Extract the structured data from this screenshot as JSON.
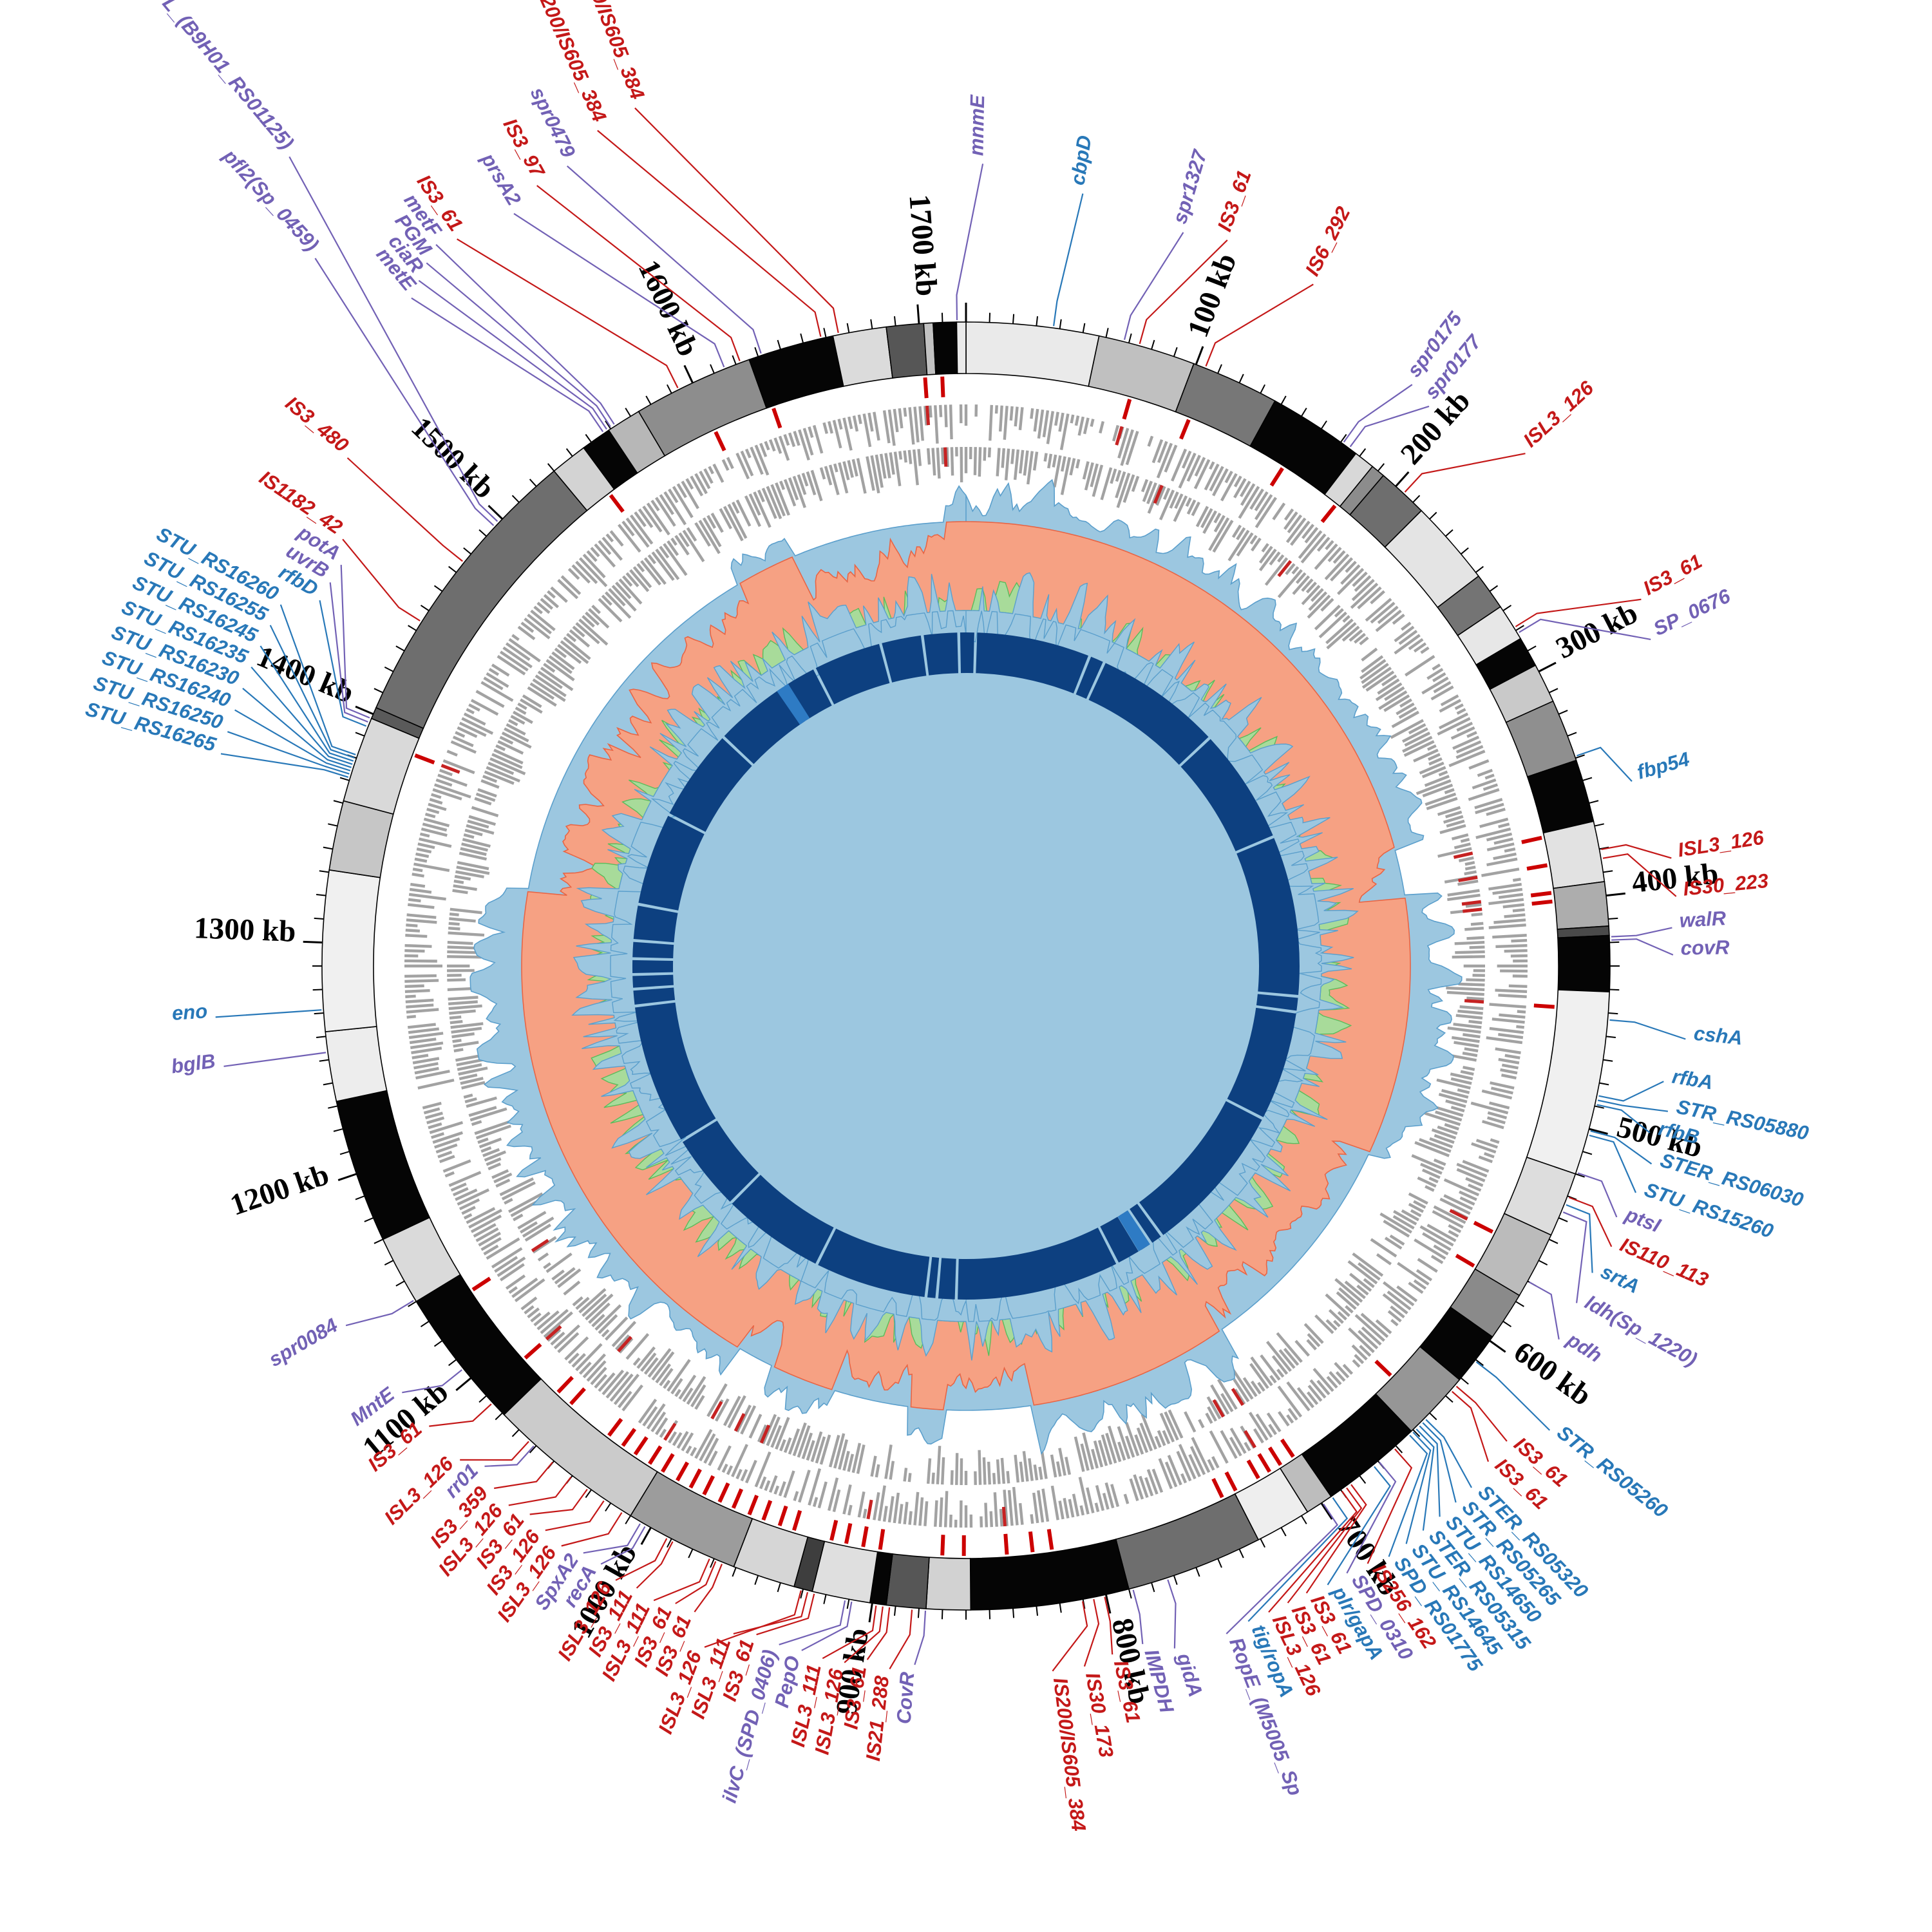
{
  "chart_data": {
    "type": "circos",
    "description": "Circular bacterial genome comparison plot with grayscale alignment ring, kb scale, IS-element marks, gene bar tracks, GC-skew and coverage histograms, core-genome inner ring, and radiating gene labels",
    "genome_length_kb": 1720,
    "unit": "kb",
    "ticks": {
      "minor_kb": 10,
      "major_kb": 100
    },
    "scale_labels": [
      "100 kb",
      "200 kb",
      "300 kb",
      "400 kb",
      "500 kb",
      "600 kb",
      "700 kb",
      "800 kb",
      "900 kb",
      "1000 kb",
      "1100 kb",
      "1200 kb",
      "1300 kb",
      "1400 kb",
      "1500 kb",
      "1600 kb",
      "1700 kb"
    ],
    "palette": {
      "label_red": "#C41818",
      "label_blue": "#2878B8",
      "label_purple": "#7261B5",
      "scale_black": "#000000",
      "skew_pos_fill": "#9CC7E0",
      "skew_pos_stroke": "#5B9FCC",
      "skew_neg_fill": "#F6A183",
      "skew_neg_stroke": "#E86545",
      "cov_green_fill": "#A8DB9A",
      "cov_green_stroke": "#5BBB5B",
      "cov_blue_fill": "#9CC7E0",
      "cov_blue_stroke": "#5B9FCC",
      "core_ring": "#0D4080",
      "core_ring_highlight": "#2E7BC4",
      "gene_bar": "#A2A2A2",
      "gene_bar_red": "#C62222",
      "is_mark_red": "#CC0000",
      "ring_outline": "#000000"
    },
    "layout": {
      "center": 1500,
      "karyotype_r": [
        920,
        1000
      ],
      "tick_r": 1000,
      "kb_label_r": 1042,
      "is_mark_r": [
        884,
        916
      ],
      "gene_row1_base_r": 872,
      "gene_row2_base_r": 806,
      "skew_base_r": 690,
      "skew_amp_out": 80,
      "skew_amp_in": 95,
      "cov_base_r": 552,
      "core_r": [
        455,
        518
      ],
      "leader_r1": 1003,
      "leader_r2": 1042
    },
    "karyotype_segments": [
      [
        0,
        57,
        "#EAEAEA"
      ],
      [
        57,
        99,
        "#C0C0C0"
      ],
      [
        99,
        137,
        "#777777"
      ],
      [
        137,
        178,
        "#050505"
      ],
      [
        178,
        187,
        "#D8D8D8"
      ],
      [
        187,
        193,
        "#8C8C8C"
      ],
      [
        193,
        215,
        "#6E6E6E"
      ],
      [
        215,
        252,
        "#E4E4E4"
      ],
      [
        252,
        268,
        "#747474"
      ],
      [
        268,
        284,
        "#E7E7E7"
      ],
      [
        284,
        297,
        "#050505"
      ],
      [
        297,
        314,
        "#C9C9C9"
      ],
      [
        314,
        341,
        "#8F8F8F"
      ],
      [
        341,
        368,
        "#050505"
      ],
      [
        368,
        394,
        "#E2E2E2"
      ],
      [
        394,
        413,
        "#ADADAD"
      ],
      [
        413,
        417,
        "#4A4A4A"
      ],
      [
        417,
        441,
        "#050505"
      ],
      [
        441,
        520,
        "#F0F0F0"
      ],
      [
        520,
        548,
        "#DDDDDD"
      ],
      [
        548,
        577,
        "#BBBBBB"
      ],
      [
        577,
        598,
        "#8A8A8A"
      ],
      [
        598,
        621,
        "#050505"
      ],
      [
        621,
        651,
        "#969696"
      ],
      [
        651,
        695,
        "#050505"
      ],
      [
        695,
        707,
        "#BDBDBD"
      ],
      [
        707,
        731,
        "#EEEEEE"
      ],
      [
        731,
        790,
        "#6E6E6E"
      ],
      [
        790,
        858,
        "#050505"
      ],
      [
        858,
        877,
        "#D2D2D2"
      ],
      [
        877,
        894,
        "#565656"
      ],
      [
        894,
        901,
        "#050505"
      ],
      [
        901,
        926,
        "#DFDFDF"
      ],
      [
        926,
        934,
        "#3E3E3E"
      ],
      [
        934,
        961,
        "#D6D6D6"
      ],
      [
        961,
        1010,
        "#9C9C9C"
      ],
      [
        1010,
        1079,
        "#CBCBCB"
      ],
      [
        1079,
        1140,
        "#050505"
      ],
      [
        1140,
        1170,
        "#DADADA"
      ],
      [
        1170,
        1232,
        "#050505"
      ],
      [
        1232,
        1262,
        "#EDEDED"
      ],
      [
        1262,
        1331,
        "#F0F0F0"
      ],
      [
        1331,
        1361,
        "#C6C6C6"
      ],
      [
        1361,
        1398,
        "#D9D9D9"
      ],
      [
        1398,
        1403,
        "#5A5A5A"
      ],
      [
        1403,
        1530,
        "#6E6E6E"
      ],
      [
        1530,
        1546,
        "#D3D3D3"
      ],
      [
        1546,
        1559,
        "#050505"
      ],
      [
        1559,
        1574,
        "#B7B7B7"
      ],
      [
        1574,
        1626,
        "#8D8D8D"
      ],
      [
        1626,
        1663,
        "#050505"
      ],
      [
        1663,
        1686,
        "#DBDBDB"
      ],
      [
        1686,
        1702,
        "#565656"
      ],
      [
        1702,
        1706,
        "#C2C2C2"
      ],
      [
        1706,
        1716,
        "#050505"
      ],
      [
        1716,
        1720,
        "#EAEAEA"
      ]
    ],
    "is_element_marks_kb": [
      77,
      106,
      155,
      185,
      370,
      383,
      396,
      400,
      449,
      558,
      576,
      640,
      699,
      706,
      712,
      718,
      730,
      737,
      820,
      829,
      841,
      861,
      871,
      900,
      908,
      916,
      923,
      941,
      948,
      956,
      963,
      971,
      978,
      986,
      993,
      1000,
      1008,
      1015,
      1023,
      1030,
      1038,
      1061,
      1069,
      1091,
      1131,
      1390,
      1543,
      1600,
      1629,
      1701,
      1709
    ],
    "gene_rows": {
      "bin_kb": 2.5,
      "seed_row1": 101,
      "seed_row2": 202,
      "fill_prob": 0.85
    },
    "gc_skew": {
      "seed_a": 7,
      "seed_b": 19,
      "negative_spans_kb": [
        [
          358,
          387
        ],
        [
          549,
          692
        ],
        [
          820,
          872
        ],
        [
          896,
          943
        ],
        [
          983,
          1006
        ],
        [
          1338,
          1572
        ],
        [
          1612,
          1706
        ]
      ],
      "boost_spans_kb": [
        [
          400,
          540
        ],
        [
          1090,
          1290
        ]
      ]
    },
    "coverage_track": {
      "seed_blue": 31,
      "seed_green": 57
    },
    "inner_ring": {
      "gaps_kb": [
        8,
        104,
        117,
        224,
        321,
        455,
        468,
        560,
        688,
        699,
        710,
        731,
        868,
        884,
        893,
        987,
        1074,
        1139,
        1257,
        1271,
        1283,
        1296,
        1311,
        1341,
        1419,
        1497,
        1562,
        1591,
        1649,
        1684,
        1714
      ],
      "gap_deg": 0.5,
      "highlights_kb": [
        [
          1555,
          1566
        ],
        [
          700,
          711
        ]
      ]
    },
    "gene_labels": [
      {
        "t": "mnmE",
        "c": "p",
        "a": 359.2,
        "la": 1.2,
        "r": 1258
      },
      {
        "t": "cbpD",
        "c": "b",
        "a": 7.8,
        "la": 8.6,
        "r": 1225
      },
      {
        "t": "spr1327",
        "c": "p",
        "a": 14.2,
        "la": 16.5,
        "r": 1200
      },
      {
        "t": "IS3_61",
        "c": "r",
        "a": 15.6,
        "la": 19.8,
        "r": 1210
      },
      {
        "t": "IS6_292",
        "c": "r",
        "a": 21.8,
        "la": 27.0,
        "r": 1200
      },
      {
        "t": "spr0175",
        "c": "p",
        "a": 35.8,
        "la": 37.5,
        "r": 1150
      },
      {
        "t": "spr0177",
        "c": "p",
        "a": 36.5,
        "la": 39.6,
        "r": 1140
      },
      {
        "t": "ISL3_126",
        "c": "r",
        "a": 42.8,
        "la": 47.5,
        "r": 1190
      },
      {
        "t": "IS3_61",
        "c": "r",
        "a": 58.3,
        "la": 61.5,
        "r": 1205
      },
      {
        "t": "SP_0676",
        "c": "p",
        "a": 58.9,
        "la": 64.5,
        "r": 1190
      },
      {
        "t": "fbp54",
        "c": "b",
        "a": 71.0,
        "la": 74.5,
        "r": 1085
      },
      {
        "t": "ISL3_126",
        "c": "r",
        "a": 79.6,
        "la": 81.3,
        "r": 1120
      },
      {
        "t": "IS30_223",
        "c": "r",
        "a": 80.4,
        "la": 84.4,
        "r": 1120
      },
      {
        "t": "walR",
        "c": "p",
        "a": 87.4,
        "la": 86.9,
        "r": 1110
      },
      {
        "t": "covR",
        "c": "p",
        "a": 87.7,
        "la": 89.1,
        "r": 1110
      },
      {
        "t": "cshA",
        "c": "b",
        "a": 94.8,
        "la": 95.8,
        "r": 1135
      },
      {
        "t": "rfbA",
        "c": "b",
        "a": 101.6,
        "la": 99.4,
        "r": 1110
      },
      {
        "t": "STR_RS05880",
        "c": "b",
        "a": 102.0,
        "la": 101.7,
        "r": 1125
      },
      {
        "t": "rfbB",
        "c": "b",
        "a": 102.4,
        "la": 103.7,
        "r": 1105
      },
      {
        "t": "STER_RS06030",
        "c": "b",
        "a": 104.8,
        "la": 106.1,
        "r": 1120
      },
      {
        "t": "STU_RS15260",
        "c": "b",
        "a": 105.2,
        "la": 108.7,
        "r": 1110
      },
      {
        "t": "ptsI",
        "c": "p",
        "a": 108.7,
        "la": 111.1,
        "r": 1095
      },
      {
        "t": "IS110_113",
        "c": "r",
        "a": 111.0,
        "la": 113.5,
        "r": 1105
      },
      {
        "t": "srtA",
        "c": "b",
        "a": 111.7,
        "la": 116.1,
        "r": 1095
      },
      {
        "t": "ldh(Sp_1220)",
        "c": "p",
        "a": 112.4,
        "la": 118.9,
        "r": 1095
      },
      {
        "t": "pdh",
        "c": "p",
        "a": 119.3,
        "la": 122.2,
        "r": 1100
      },
      {
        "t": "STR_RS05260",
        "c": "b",
        "a": 127.8,
        "la": 128.5,
        "r": 1170
      },
      {
        "t": "IS3_61",
        "c": "r",
        "a": 130.6,
        "la": 131.3,
        "r": 1130
      },
      {
        "t": "IS3_61",
        "c": "r",
        "a": 131.2,
        "la": 133.5,
        "r": 1130
      },
      {
        "t": "STER_RS05320",
        "c": "b",
        "a": 134.6,
        "la": 135.9,
        "r": 1140
      },
      {
        "t": "STR_RS05265",
        "c": "b",
        "a": 135.0,
        "la": 137.6,
        "r": 1140
      },
      {
        "t": "STU_RS14650",
        "c": "b",
        "a": 135.4,
        "la": 139.3,
        "r": 1140
      },
      {
        "t": "STER_RS05315",
        "c": "b",
        "a": 135.8,
        "la": 141.0,
        "r": 1140
      },
      {
        "t": "STU_RS14645",
        "c": "b",
        "a": 136.2,
        "la": 142.7,
        "r": 1140
      },
      {
        "t": "SPD_RS01775",
        "c": "b",
        "a": 136.6,
        "la": 144.4,
        "r": 1140
      },
      {
        "t": "IS256_162",
        "c": "r",
        "a": 138.4,
        "la": 146.1,
        "r": 1130
      },
      {
        "t": "SPD_0310",
        "c": "p",
        "a": 140.2,
        "la": 147.9,
        "r": 1125
      },
      {
        "t": "plr/gapA",
        "c": "b",
        "a": 140.8,
        "la": 149.7,
        "r": 1125
      },
      {
        "t": "IS3_61",
        "c": "r",
        "a": 143.4,
        "la": 151.5,
        "r": 1120
      },
      {
        "t": "IS3_61",
        "c": "r",
        "a": 143.9,
        "la": 153.2,
        "r": 1120
      },
      {
        "t": "ISL3_126",
        "c": "r",
        "a": 144.4,
        "la": 154.9,
        "r": 1120
      },
      {
        "t": "tig/ropA",
        "c": "b",
        "a": 145.4,
        "la": 156.7,
        "r": 1120
      },
      {
        "t": "RopE_(M5005_Sp",
        "c": "p",
        "a": 146.4,
        "la": 158.7,
        "r": 1125
      },
      {
        "t": "gidA",
        "c": "p",
        "a": 161.8,
        "la": 163.0,
        "r": 1120
      },
      {
        "t": "IMPDH",
        "c": "p",
        "a": 165.0,
        "la": 165.4,
        "r": 1100
      },
      {
        "t": "IS3_61",
        "c": "r",
        "a": 167.6,
        "la": 168.0,
        "r": 1105
      },
      {
        "t": "IS30_173",
        "c": "r",
        "a": 168.6,
        "la": 170.4,
        "r": 1115
      },
      {
        "t": "IS200/IS605_384",
        "c": "r",
        "a": 169.6,
        "la": 173.0,
        "r": 1115
      },
      {
        "t": "CovR",
        "c": "p",
        "a": 183.6,
        "la": 184.2,
        "r": 1100
      },
      {
        "t": "IS21_288",
        "c": "r",
        "a": 184.8,
        "la": 186.2,
        "r": 1110
      },
      {
        "t": "IS3_61",
        "c": "r",
        "a": 186.8,
        "la": 188.1,
        "r": 1100
      },
      {
        "t": "ISL3_126",
        "c": "r",
        "a": 187.4,
        "la": 189.9,
        "r": 1110
      },
      {
        "t": "ISL3_111",
        "c": "r",
        "a": 188.0,
        "la": 191.7,
        "r": 1110
      },
      {
        "t": "PepO",
        "c": "p",
        "a": 190.2,
        "la": 193.5,
        "r": 1105
      },
      {
        "t": "ilvC_(SPD_0406)",
        "c": "p",
        "a": 190.8,
        "la": 195.4,
        "r": 1105
      },
      {
        "t": "IS3_61",
        "c": "r",
        "a": 193.6,
        "la": 197.4,
        "r": 1100
      },
      {
        "t": "ISL3_111",
        "c": "r",
        "a": 194.2,
        "la": 199.2,
        "r": 1110
      },
      {
        "t": "ISL3_126",
        "c": "r",
        "a": 194.8,
        "la": 201.0,
        "r": 1145
      },
      {
        "t": "IS3_61",
        "c": "r",
        "a": 202.2,
        "la": 202.8,
        "r": 1100
      },
      {
        "t": "IS3_61",
        "c": "r",
        "a": 202.8,
        "la": 204.5,
        "r": 1100
      },
      {
        "t": "ISL3_111",
        "c": "r",
        "a": 203.4,
        "la": 206.2,
        "r": 1110
      },
      {
        "t": "IS3_111",
        "c": "r",
        "a": 207.0,
        "la": 207.9,
        "r": 1105
      },
      {
        "t": "ISL3_126",
        "c": "r",
        "a": 207.6,
        "la": 209.7,
        "r": 1110
      },
      {
        "t": "recA",
        "c": "p",
        "a": 209.8,
        "la": 211.4,
        "r": 1100
      },
      {
        "t": "SpxA2",
        "c": "p",
        "a": 210.3,
        "la": 213.1,
        "r": 1100
      },
      {
        "t": "ISL3_126",
        "c": "r",
        "a": 212.2,
        "la": 214.9,
        "r": 1110
      },
      {
        "t": "IS3_126",
        "c": "r",
        "a": 214.1,
        "la": 216.7,
        "r": 1105
      },
      {
        "t": "IS3_61",
        "c": "r",
        "a": 215.9,
        "la": 218.5,
        "r": 1100
      },
      {
        "t": "ISL3_126",
        "c": "r",
        "a": 217.7,
        "la": 220.3,
        "r": 1110
      },
      {
        "t": "IS3_359",
        "c": "r",
        "a": 219.8,
        "la": 222.1,
        "r": 1105
      },
      {
        "t": "rr01",
        "c": "p",
        "a": 222.0,
        "la": 223.9,
        "r": 1090
      },
      {
        "t": "ISL3_126",
        "c": "r",
        "a": 222.6,
        "la": 225.7,
        "r": 1110
      },
      {
        "t": "IS3_61",
        "c": "r",
        "a": 227.3,
        "la": 229.4,
        "r": 1110
      },
      {
        "t": "MntE",
        "c": "p",
        "a": 231.3,
        "la": 232.9,
        "r": 1110
      },
      {
        "t": "spr0084",
        "c": "p",
        "a": 238.8,
        "la": 239.9,
        "r": 1125
      },
      {
        "t": "bglB",
        "c": "p",
        "a": 262.3,
        "la": 262.3,
        "r": 1175
      },
      {
        "t": "eno",
        "c": "b",
        "a": 266.1,
        "la": 266.1,
        "r": 1180
      },
      {
        "t": "STU_RS16265",
        "c": "b",
        "a": 287.0,
        "la": 285.9,
        "r": 1215
      },
      {
        "t": "STU_RS16250",
        "c": "b",
        "a": 287.3,
        "la": 287.6,
        "r": 1215
      },
      {
        "t": "STU_RS16240",
        "c": "b",
        "a": 287.6,
        "la": 289.3,
        "r": 1215
      },
      {
        "t": "STU_RS16230",
        "c": "b",
        "a": 287.9,
        "la": 291.0,
        "r": 1215
      },
      {
        "t": "STU_RS16235",
        "c": "b",
        "a": 288.2,
        "la": 292.7,
        "r": 1215
      },
      {
        "t": "STU_RS16245",
        "c": "b",
        "a": 288.5,
        "la": 294.4,
        "r": 1215
      },
      {
        "t": "STU_RS16255",
        "c": "b",
        "a": 288.8,
        "la": 296.1,
        "r": 1215
      },
      {
        "t": "STU_RS16260",
        "c": "b",
        "a": 289.1,
        "la": 297.8,
        "r": 1215
      },
      {
        "t": "rfbD",
        "c": "b",
        "a": 291.8,
        "la": 299.5,
        "r": 1165
      },
      {
        "t": "uvrB",
        "c": "p",
        "a": 292.2,
        "la": 301.1,
        "r": 1165
      },
      {
        "t": "potA",
        "c": "p",
        "a": 292.6,
        "la": 302.7,
        "r": 1165
      },
      {
        "t": "IS1182_42",
        "c": "r",
        "a": 302.3,
        "la": 304.4,
        "r": 1185
      },
      {
        "t": "IS3_480",
        "c": "r",
        "a": 308.8,
        "la": 309.4,
        "r": 1255
      },
      {
        "t": "pfl2(Sp_0459)",
        "c": "p",
        "a": 313.0,
        "la": 317.4,
        "r": 1505
      },
      {
        "t": "PFL_(B9H01_RS01125)",
        "c": "p",
        "a": 313.5,
        "la": 320.1,
        "r": 1650
      },
      {
        "t": "metE",
        "c": "p",
        "a": 325.8,
        "la": 320.3,
        "r": 1360
      },
      {
        "t": "ciaR",
        "c": "p",
        "a": 326.2,
        "la": 321.4,
        "r": 1374
      },
      {
        "t": "PGM",
        "c": "p",
        "a": 326.6,
        "la": 322.5,
        "r": 1388
      },
      {
        "t": "metF",
        "c": "p",
        "a": 327.0,
        "la": 323.7,
        "r": 1402
      },
      {
        "t": "IS3_61",
        "c": "r",
        "a": 333.5,
        "la": 325.0,
        "r": 1390
      },
      {
        "t": "prsA2",
        "c": "p",
        "a": 338.0,
        "la": 329.0,
        "r": 1375
      },
      {
        "t": "IS3_97",
        "c": "r",
        "a": 339.5,
        "la": 331.2,
        "r": 1395
      },
      {
        "t": "spr0479",
        "c": "p",
        "a": 341.5,
        "la": 333.5,
        "r": 1400
      },
      {
        "t": "IS200/IS605_384",
        "c": "r",
        "a": 347.0,
        "la": 336.2,
        "r": 1430
      },
      {
        "t": "IS200/IS605_384",
        "c": "r",
        "a": 348.6,
        "la": 338.9,
        "r": 1440
      }
    ]
  }
}
